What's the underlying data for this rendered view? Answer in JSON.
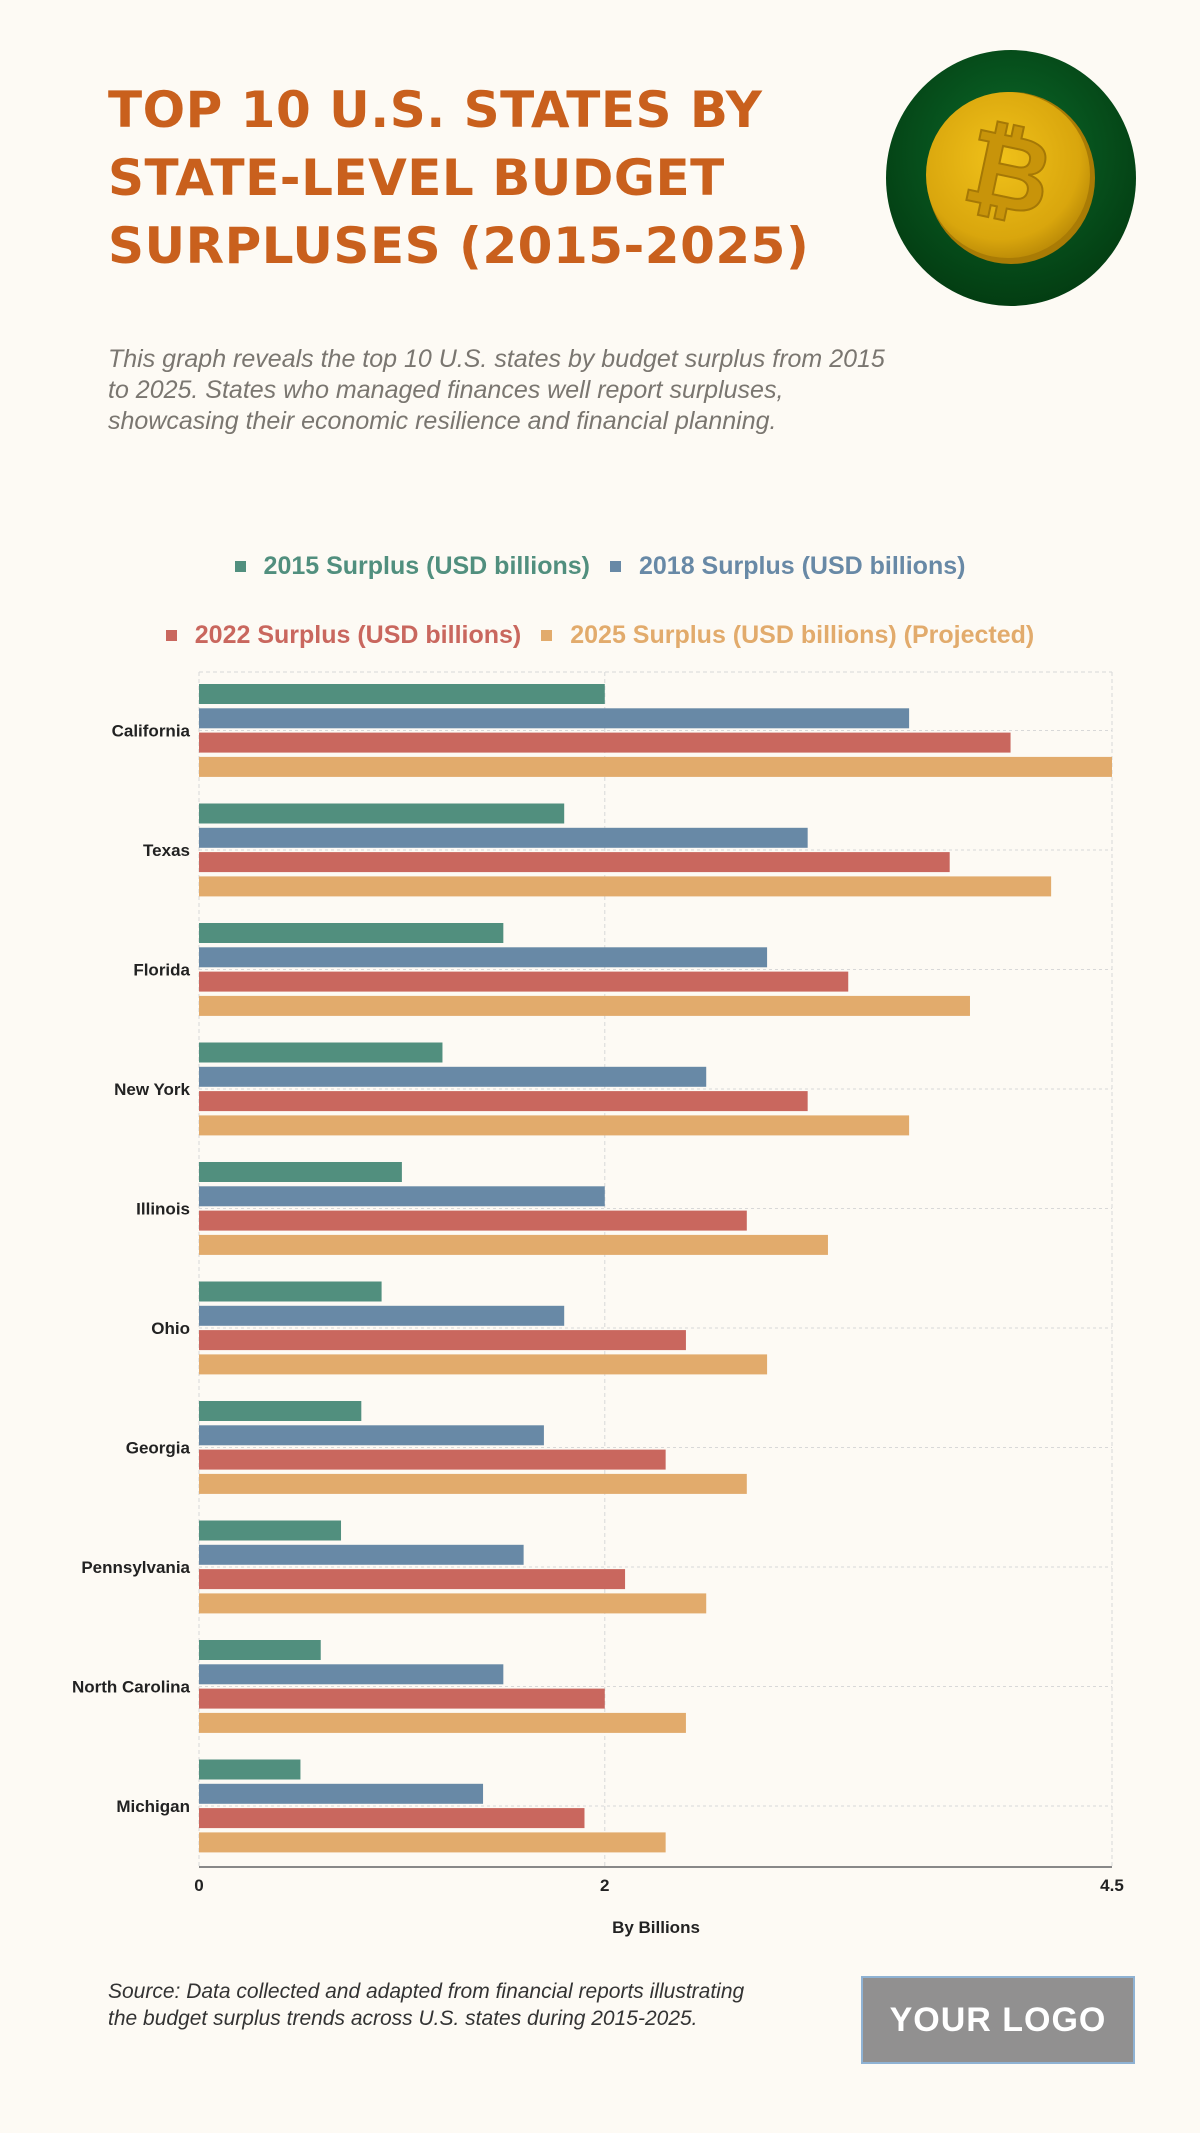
{
  "header": {
    "title": "TOP 10 U.S. STATES BY STATE-LEVEL BUDGET SURPLUSES (2015-2025)",
    "subtitle": "This graph reveals the top 10 U.S. states by budget surplus from 2015 to 2025. States who managed finances well report surpluses, showcasing their economic resilience and financial planning.",
    "icon": "bitcoin-coin-icon"
  },
  "colors": {
    "title": "#C9601D",
    "background": "#FDFAF4",
    "series_2015": "#518F7E",
    "series_2018": "#6889A6",
    "series_2022": "#C9675E",
    "series_2025": "#E2AB6C"
  },
  "chart_data": {
    "type": "bar",
    "orientation": "horizontal",
    "title": "TOP 10 U.S. STATES BY STATE-LEVEL BUDGET SURPLUSES (2015-2025)",
    "xlabel": "By Billions",
    "ylabel": "",
    "xlim": [
      0,
      4.5
    ],
    "xticks": [
      "0",
      "2",
      "4.5"
    ],
    "xtick_values": [
      0,
      2,
      4.5
    ],
    "grid": true,
    "legend_position": "top-center",
    "categories": [
      "California",
      "Texas",
      "Florida",
      "New York",
      "Illinois",
      "Ohio",
      "Georgia",
      "Pennsylvania",
      "North Carolina",
      "Michigan"
    ],
    "series": [
      {
        "name": "2015 Surplus (USD billions)",
        "color": "#518F7E",
        "values": [
          2.0,
          1.8,
          1.5,
          1.2,
          1.0,
          0.9,
          0.8,
          0.7,
          0.6,
          0.5
        ]
      },
      {
        "name": "2018 Surplus (USD billions)",
        "color": "#6889A6",
        "values": [
          3.5,
          3.0,
          2.8,
          2.5,
          2.0,
          1.8,
          1.7,
          1.6,
          1.5,
          1.4
        ]
      },
      {
        "name": "2022 Surplus (USD billions)",
        "color": "#C9675E",
        "values": [
          4.0,
          3.7,
          3.2,
          3.0,
          2.7,
          2.4,
          2.3,
          2.1,
          2.0,
          1.9
        ]
      },
      {
        "name": "2025 Surplus (USD billions) (Projected)",
        "color": "#E2AB6C",
        "values": [
          4.5,
          4.2,
          3.8,
          3.5,
          3.1,
          2.8,
          2.7,
          2.5,
          2.4,
          2.3
        ]
      }
    ]
  },
  "footer": {
    "source": "Source: Data collected and adapted from financial reports illustrating the budget surplus trends across U.S. states during 2015-2025.",
    "logo_text": "YOUR LOGO"
  }
}
